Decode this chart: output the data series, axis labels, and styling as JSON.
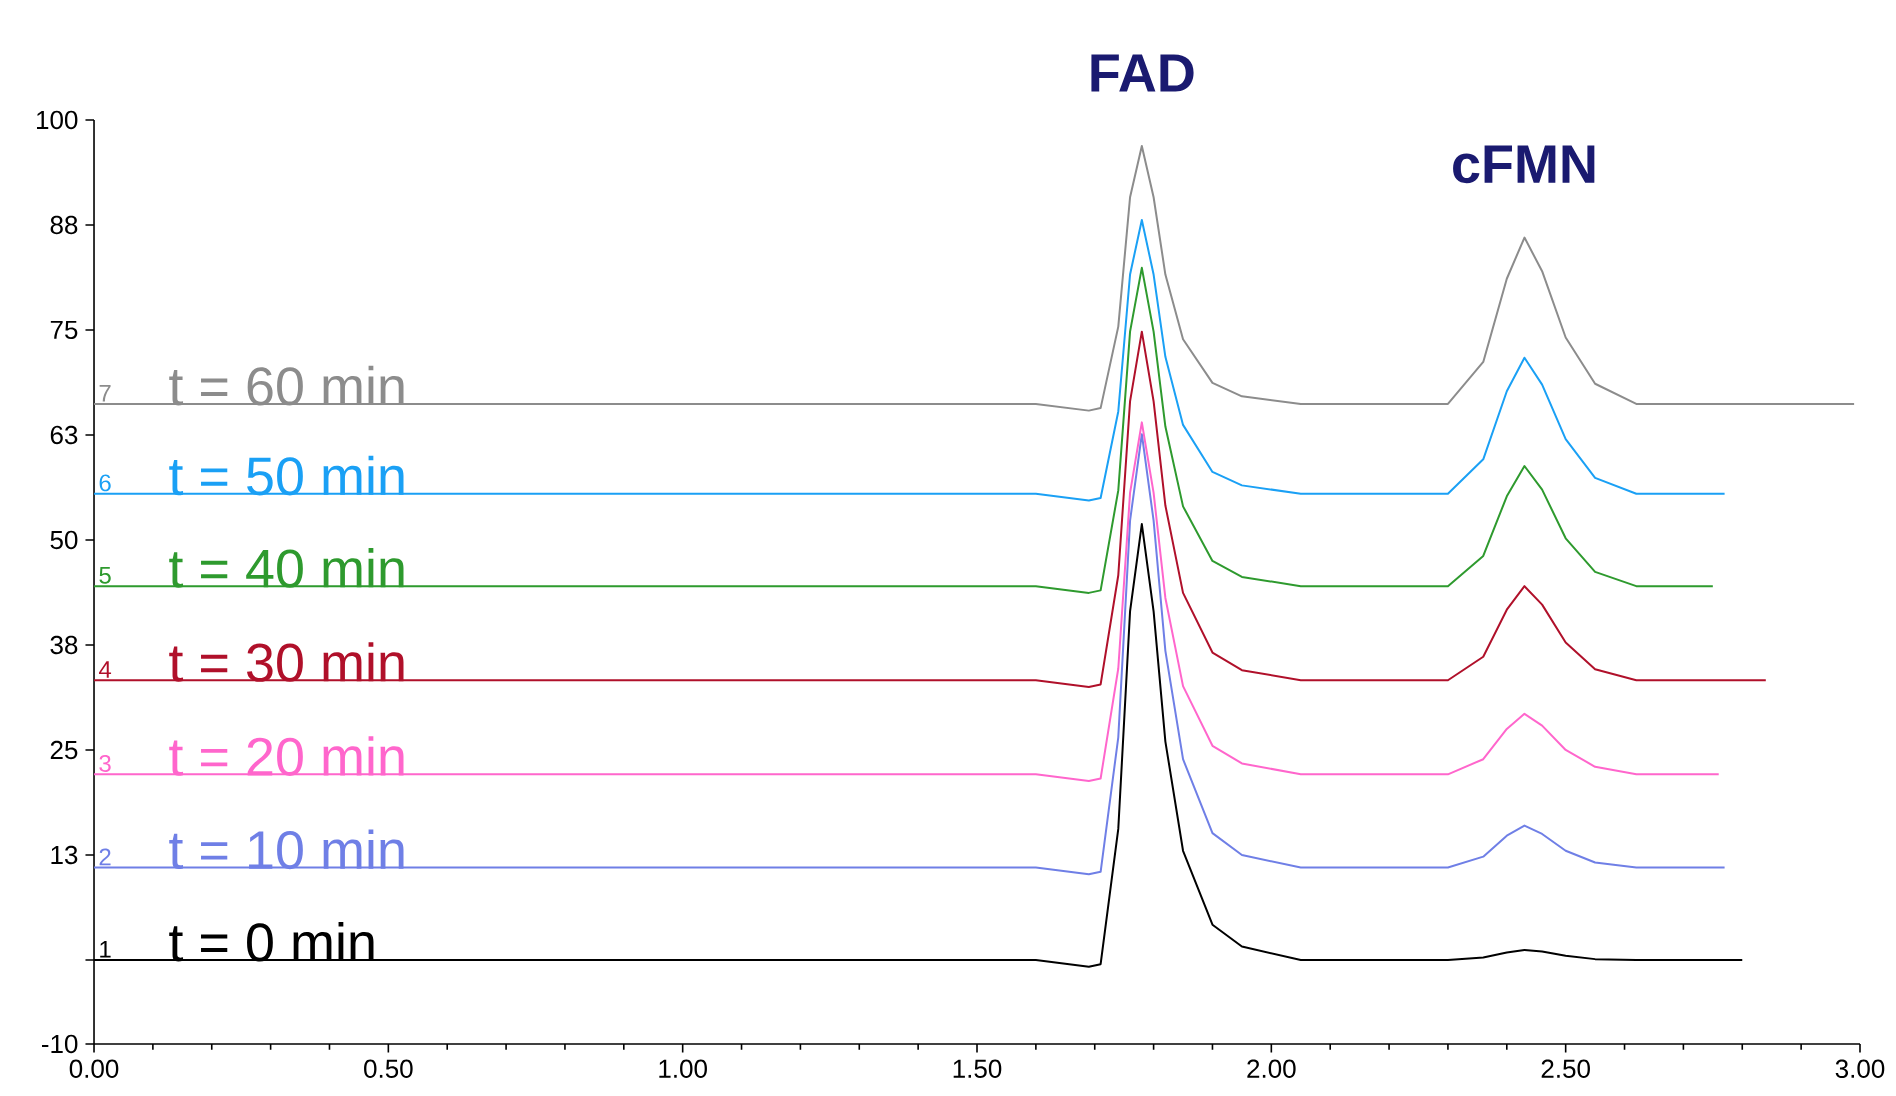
{
  "chart_data": {
    "type": "line",
    "xlim": [
      0,
      3
    ],
    "ylim": [
      -10,
      100
    ],
    "xticks": [
      {
        "value": 0,
        "label": "0.00"
      },
      {
        "value": 0.5,
        "label": "0.50"
      },
      {
        "value": 1,
        "label": "1.00"
      },
      {
        "value": 1.5,
        "label": "1.50"
      },
      {
        "value": 2,
        "label": "2.00"
      },
      {
        "value": 2.5,
        "label": "2.50"
      },
      {
        "value": 3,
        "label": "3.00"
      }
    ],
    "yticks": [
      -10,
      {
        "value": 0,
        "label": null
      },
      {
        "value": 12.5,
        "label": "13"
      },
      25,
      {
        "value": 37.5,
        "label": "38"
      },
      50,
      {
        "value": 62.5,
        "label": "63"
      },
      75,
      {
        "value": 87.5,
        "label": "88"
      },
      100
    ],
    "series": [
      {
        "name": "t = 0 min",
        "color": "#000000",
        "x": [
          0,
          1.0,
          1.6,
          1.69,
          1.71,
          1.74,
          1.76,
          1.78,
          1.8,
          1.82,
          1.85,
          1.9,
          1.95,
          2.05,
          2.3,
          2.36,
          2.4,
          2.43,
          2.46,
          2.5,
          2.55,
          2.62,
          2.8
        ],
        "values": [
          0,
          0,
          0,
          -0.8,
          -0.5,
          15.6,
          41.5,
          51.9,
          41.5,
          26,
          13,
          4.2,
          1.6,
          0,
          0,
          0.3,
          0.9,
          1.2,
          1,
          0.5,
          0.1,
          0,
          0
        ]
      },
      {
        "name": "t = 10 min",
        "color": "#6f7fe6",
        "x": [
          0,
          1.0,
          1.6,
          1.69,
          1.71,
          1.74,
          1.76,
          1.78,
          1.8,
          1.82,
          1.85,
          1.9,
          1.95,
          2.05,
          2.3,
          2.36,
          2.4,
          2.43,
          2.46,
          2.5,
          2.55,
          2.62,
          2.77
        ],
        "values": [
          11,
          11,
          11,
          10.2,
          10.5,
          26.5,
          52.3,
          62.6,
          52.3,
          36.8,
          23.9,
          15.1,
          12.5,
          11,
          11,
          12.3,
          14.8,
          16,
          15,
          13,
          11.6,
          11,
          11
        ]
      },
      {
        "name": "t = 20 min",
        "color": "#ff66cc",
        "x": [
          0,
          1.0,
          1.6,
          1.69,
          1.71,
          1.74,
          1.76,
          1.78,
          1.8,
          1.82,
          1.85,
          1.9,
          1.95,
          2.05,
          2.3,
          2.36,
          2.4,
          2.43,
          2.46,
          2.5,
          2.55,
          2.62,
          2.76
        ],
        "values": [
          22.1,
          22.1,
          22.1,
          21.3,
          21.6,
          34.7,
          55.6,
          64,
          55.6,
          43.1,
          32.6,
          25.5,
          23.4,
          22.1,
          22.1,
          23.9,
          27.5,
          29.3,
          27.9,
          25,
          23,
          22.1,
          22.1
        ]
      },
      {
        "name": "t = 30 min",
        "color": "#b0102a",
        "x": [
          0,
          1.0,
          1.6,
          1.69,
          1.71,
          1.74,
          1.76,
          1.78,
          1.8,
          1.82,
          1.85,
          1.9,
          1.95,
          2.05,
          2.3,
          2.36,
          2.4,
          2.43,
          2.46,
          2.5,
          2.55,
          2.62,
          2.84
        ],
        "values": [
          33.3,
          33.3,
          33.3,
          32.5,
          32.8,
          45.8,
          66.5,
          74.8,
          66.5,
          54.1,
          43.7,
          36.6,
          34.5,
          33.3,
          33.3,
          36.1,
          41.7,
          44.5,
          42.3,
          37.8,
          34.6,
          33.3,
          33.3
        ]
      },
      {
        "name": "t = 40 min",
        "color": "#2e9a2e",
        "x": [
          0,
          1.0,
          1.6,
          1.69,
          1.71,
          1.74,
          1.76,
          1.78,
          1.8,
          1.82,
          1.85,
          1.9,
          1.95,
          2.05,
          2.3,
          2.36,
          2.4,
          2.43,
          2.46,
          2.5,
          2.55,
          2.62,
          2.75
        ],
        "values": [
          44.5,
          44.5,
          44.5,
          43.7,
          44,
          55.9,
          74.8,
          82.4,
          74.8,
          63.5,
          54,
          47.5,
          45.6,
          44.5,
          44.5,
          48.1,
          55.2,
          58.8,
          56,
          50.2,
          46.2,
          44.5,
          44.5
        ]
      },
      {
        "name": "t = 50 min",
        "color": "#1aa0f5",
        "x": [
          0,
          1.0,
          1.6,
          1.69,
          1.71,
          1.74,
          1.76,
          1.78,
          1.8,
          1.82,
          1.85,
          1.9,
          1.95,
          2.05,
          2.3,
          2.36,
          2.4,
          2.43,
          2.46,
          2.5,
          2.55,
          2.62,
          2.77
        ],
        "values": [
          55.5,
          55.5,
          55.5,
          54.7,
          55,
          65.3,
          81.6,
          88.1,
          81.6,
          71.8,
          63.7,
          58.1,
          56.5,
          55.5,
          55.5,
          59.6,
          67.7,
          71.7,
          68.5,
          62,
          57.4,
          55.5,
          55.5
        ]
      },
      {
        "name": "t = 60 min",
        "color": "#8c8c8c",
        "x": [
          0,
          1.0,
          1.6,
          1.69,
          1.71,
          1.74,
          1.76,
          1.78,
          1.8,
          1.82,
          1.85,
          1.9,
          1.95,
          2.05,
          2.3,
          2.36,
          2.4,
          2.43,
          2.46,
          2.5,
          2.55,
          2.62,
          2.99
        ],
        "values": [
          66.2,
          66.2,
          66.2,
          65.4,
          65.7,
          75.4,
          90.8,
          96.9,
          90.8,
          81.6,
          73.9,
          68.7,
          67.1,
          66.2,
          66.2,
          71.2,
          81.1,
          86,
          82,
          74.1,
          68.6,
          66.2,
          66.2
        ]
      }
    ],
    "annotations": [
      {
        "text": "FAD",
        "x": 1.78,
        "y": 96.9
      },
      {
        "text": "cFMN",
        "x": 2.43,
        "y": 86
      },
      {
        "text": "1",
        "x": 0,
        "y": 0
      },
      {
        "text": "2",
        "x": 0,
        "y": 11
      },
      {
        "text": "3",
        "x": 0,
        "y": 22.1
      },
      {
        "text": "4",
        "x": 0,
        "y": 33.3
      },
      {
        "text": "5",
        "x": 0,
        "y": 44.5
      },
      {
        "text": "6",
        "x": 0,
        "y": 55.5
      },
      {
        "text": "7",
        "x": 0,
        "y": 66.2
      }
    ]
  }
}
